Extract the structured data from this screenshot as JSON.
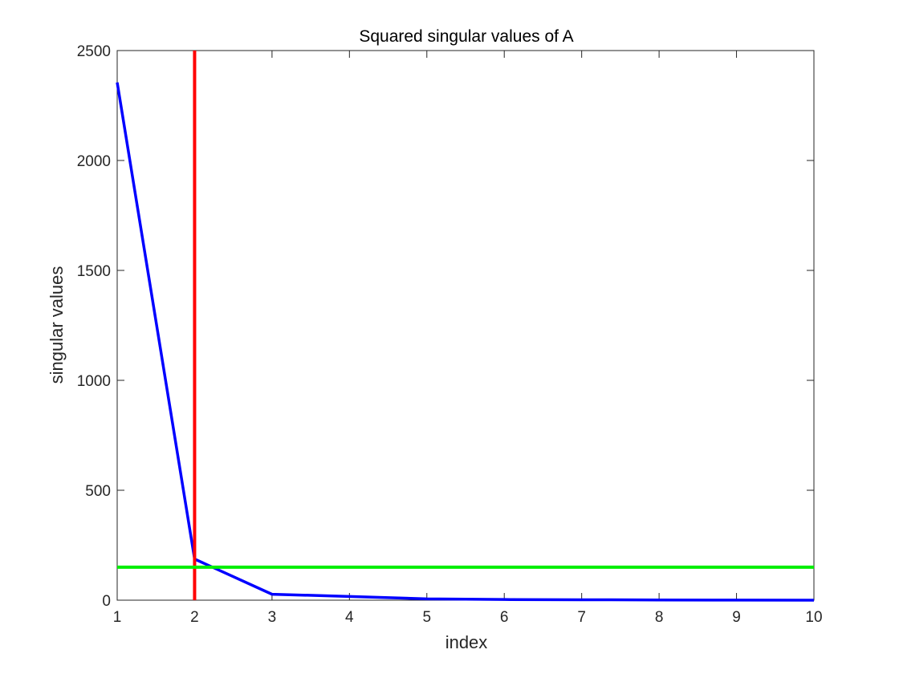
{
  "chart_data": {
    "type": "line",
    "title": "Squared singular values of A",
    "xlabel": "index",
    "ylabel": "singular values",
    "xlim": [
      1,
      10
    ],
    "ylim": [
      0,
      2500
    ],
    "x_ticks": [
      1,
      2,
      3,
      4,
      5,
      6,
      7,
      8,
      9,
      10
    ],
    "y_ticks": [
      0,
      500,
      1000,
      1500,
      2000,
      2500
    ],
    "grid": false,
    "box": true,
    "series": [
      {
        "color": "#0000ff",
        "x": [
          1,
          2,
          3,
          4,
          5,
          6,
          7,
          8,
          9,
          10
        ],
        "y": [
          2355,
          187,
          27,
          17,
          6,
          3,
          2,
          1,
          0.5,
          0.2
        ]
      }
    ],
    "reference_lines": [
      {
        "orientation": "vertical",
        "value": 2,
        "color": "#ff0000"
      },
      {
        "orientation": "horizontal",
        "value": 150,
        "color": "#00ee00"
      }
    ]
  }
}
